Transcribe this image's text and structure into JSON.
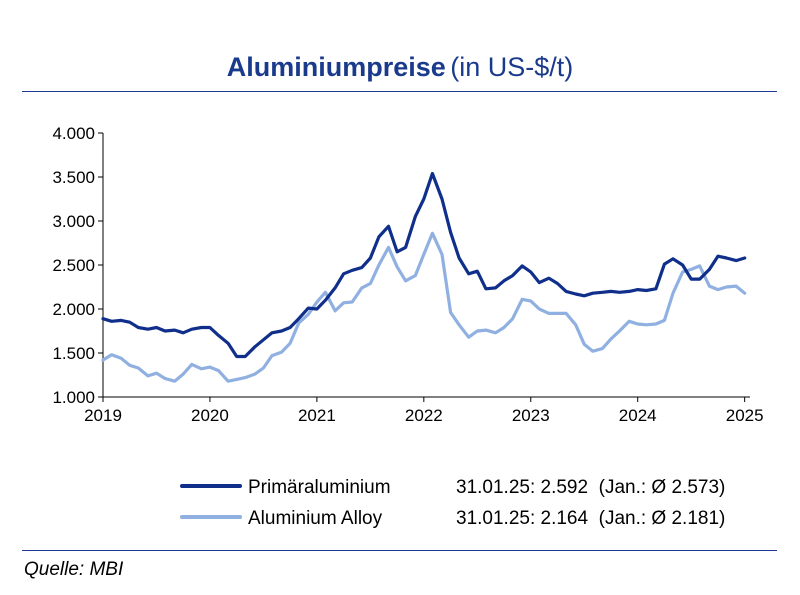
{
  "title": {
    "main": "Aluminiumpreise",
    "unit": "(in US-$/t)"
  },
  "source": "Quelle: MBI",
  "colors": {
    "primary": "#0f2f8a",
    "alloy": "#8fb0e0",
    "accent": "#1a3a8c"
  },
  "chart_data": {
    "type": "line",
    "ylim": [
      1000,
      4000
    ],
    "yticks": [
      1000,
      1500,
      2000,
      2500,
      3000,
      3500,
      4000
    ],
    "ytick_labels": [
      "1.000",
      "1.500",
      "2.000",
      "2.500",
      "3.000",
      "3.500",
      "4.000"
    ],
    "xlim": [
      2019,
      2025.05
    ],
    "xticks": [
      2019,
      2020,
      2021,
      2022,
      2023,
      2024,
      2025
    ],
    "xtick_labels": [
      "2019",
      "2020",
      "2021",
      "2022",
      "2023",
      "2024",
      "2025"
    ],
    "grid": false,
    "legend_position": "bottom",
    "series": [
      {
        "name": "Primäraluminium",
        "color": "#0f2f8a",
        "annotation": "31.01.25: 2.592  (Jan.: Ø 2.573)",
        "x": [
          2019.0,
          2019.08,
          2019.17,
          2019.25,
          2019.33,
          2019.42,
          2019.5,
          2019.58,
          2019.67,
          2019.75,
          2019.83,
          2019.92,
          2020.0,
          2020.08,
          2020.17,
          2020.25,
          2020.33,
          2020.42,
          2020.5,
          2020.58,
          2020.67,
          2020.75,
          2020.83,
          2020.92,
          2021.0,
          2021.08,
          2021.17,
          2021.25,
          2021.33,
          2021.42,
          2021.5,
          2021.58,
          2021.67,
          2021.75,
          2021.83,
          2021.92,
          2022.0,
          2022.08,
          2022.17,
          2022.25,
          2022.33,
          2022.42,
          2022.5,
          2022.58,
          2022.67,
          2022.75,
          2022.83,
          2022.92,
          2023.0,
          2023.08,
          2023.17,
          2023.25,
          2023.33,
          2023.42,
          2023.5,
          2023.58,
          2023.67,
          2023.75,
          2023.83,
          2023.92,
          2024.0,
          2024.08,
          2024.17,
          2024.25,
          2024.33,
          2024.42,
          2024.5,
          2024.58,
          2024.67,
          2024.75,
          2024.83,
          2024.92,
          2025.0
        ],
        "y": [
          1890,
          1860,
          1870,
          1850,
          1790,
          1770,
          1790,
          1750,
          1760,
          1730,
          1770,
          1790,
          1790,
          1700,
          1610,
          1460,
          1460,
          1570,
          1650,
          1730,
          1750,
          1790,
          1890,
          2010,
          2000,
          2100,
          2240,
          2400,
          2440,
          2470,
          2580,
          2820,
          2940,
          2650,
          2700,
          3050,
          3250,
          3540,
          3250,
          2870,
          2580,
          2400,
          2430,
          2230,
          2240,
          2320,
          2380,
          2490,
          2420,
          2300,
          2350,
          2290,
          2200,
          2170,
          2150,
          2180,
          2190,
          2200,
          2190,
          2200,
          2220,
          2210,
          2230,
          2510,
          2570,
          2500,
          2340,
          2340,
          2450,
          2600,
          2580,
          2550,
          2580
        ]
      },
      {
        "name": "Aluminium Alloy",
        "color": "#8fb0e0",
        "annotation": "31.01.25: 2.164  (Jan.: Ø 2.181)",
        "x": [
          2019.0,
          2019.08,
          2019.17,
          2019.25,
          2019.33,
          2019.42,
          2019.5,
          2019.58,
          2019.67,
          2019.75,
          2019.83,
          2019.92,
          2020.0,
          2020.08,
          2020.17,
          2020.25,
          2020.33,
          2020.42,
          2020.5,
          2020.58,
          2020.67,
          2020.75,
          2020.83,
          2020.92,
          2021.0,
          2021.08,
          2021.17,
          2021.25,
          2021.33,
          2021.42,
          2021.5,
          2021.58,
          2021.67,
          2021.75,
          2021.83,
          2021.92,
          2022.0,
          2022.08,
          2022.17,
          2022.25,
          2022.33,
          2022.42,
          2022.5,
          2022.58,
          2022.67,
          2022.75,
          2022.83,
          2022.92,
          2023.0,
          2023.08,
          2023.17,
          2023.25,
          2023.33,
          2023.42,
          2023.5,
          2023.58,
          2023.67,
          2023.75,
          2023.83,
          2023.92,
          2024.0,
          2024.08,
          2024.17,
          2024.25,
          2024.33,
          2024.42,
          2024.5,
          2024.58,
          2024.67,
          2024.75,
          2024.83,
          2024.92,
          2025.0
        ],
        "y": [
          1420,
          1480,
          1440,
          1360,
          1330,
          1240,
          1270,
          1210,
          1180,
          1260,
          1370,
          1320,
          1340,
          1300,
          1180,
          1200,
          1220,
          1260,
          1330,
          1470,
          1510,
          1610,
          1840,
          1940,
          2080,
          2190,
          1980,
          2070,
          2080,
          2240,
          2290,
          2500,
          2700,
          2480,
          2320,
          2380,
          2620,
          2860,
          2620,
          1960,
          1820,
          1680,
          1750,
          1760,
          1730,
          1790,
          1890,
          2110,
          2090,
          2000,
          1950,
          1950,
          1950,
          1820,
          1600,
          1520,
          1550,
          1660,
          1750,
          1860,
          1830,
          1820,
          1830,
          1870,
          2180,
          2420,
          2450,
          2490,
          2260,
          2220,
          2250,
          2260,
          2180
        ]
      }
    ]
  }
}
